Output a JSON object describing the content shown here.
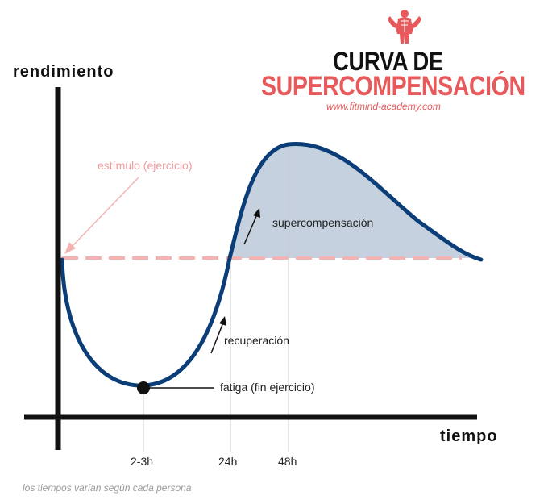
{
  "title": {
    "line1": "CURVA DE",
    "line2": "SUPERCOMPENSACIÓN",
    "website": "www.fitmind-academy.com"
  },
  "axes": {
    "y_label": "rendimiento",
    "x_label": "tiempo",
    "x_ticks": [
      "2-3h",
      "24h",
      "48h"
    ]
  },
  "annotations": {
    "stimulus": "estímulo (ejercicio)",
    "supercompensation": "supercompensación",
    "recovery": "recuperación",
    "fatigue": "fatiga (fin ejercicio)"
  },
  "footnote": "los tiempos varían según cada persona",
  "colors": {
    "curve": "#0b3e78",
    "fill": "#c5d1de",
    "baseline": "#f4b3b3",
    "accent": "#e8595b",
    "axis": "#111111"
  },
  "logo": {
    "icon": "bodybuilder-logo-icon"
  }
}
